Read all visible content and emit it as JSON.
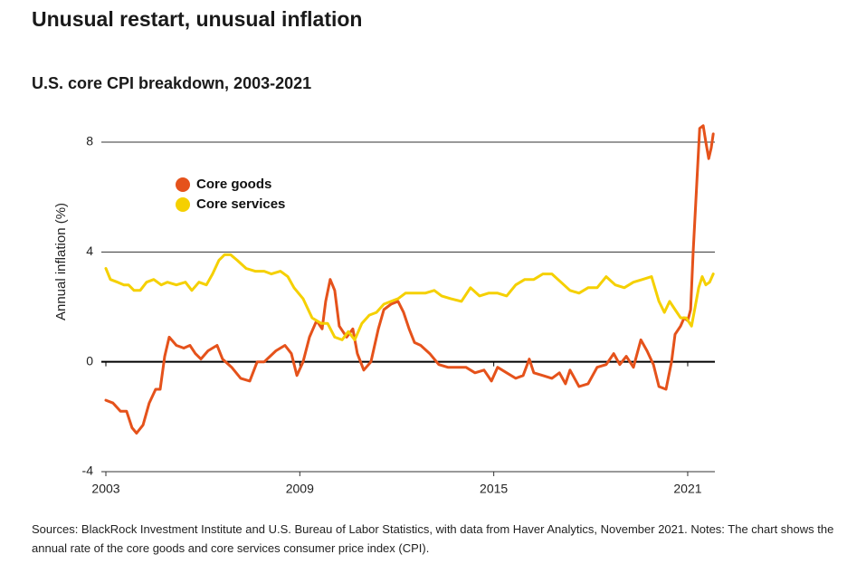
{
  "chart_data": {
    "type": "line",
    "title": "Unusual restart, unusual inflation",
    "subtitle": "U.S. core CPI breakdown, 2003-2021",
    "y_label": "Annual inflation (%)",
    "note": "Sources: BlackRock Investment Institute and U.S. Bureau of Labor Statistics, with data from Haver Analytics, November 2021. Notes: The chart shows the annual rate of the core goods and core services consumer price index (CPI).",
    "xlim": [
      2003,
      2021.85
    ],
    "xticks": [
      2003,
      2009,
      2015,
      2021
    ],
    "ylim": [
      -4,
      8
    ],
    "yticks": [
      -4,
      0,
      4,
      8
    ],
    "grid": true,
    "legend": "upper-left",
    "series": [
      {
        "name": "Core goods",
        "color": "#e5521b",
        "x": [
          2003.0,
          2003.22,
          2003.45,
          2003.64,
          2003.81,
          2003.95,
          2004.15,
          2004.34,
          2004.54,
          2004.68,
          2004.82,
          2004.96,
          2005.18,
          2005.41,
          2005.6,
          2005.77,
          2005.94,
          2006.16,
          2006.44,
          2006.61,
          2006.89,
          2007.17,
          2007.45,
          2007.68,
          2007.9,
          2008.26,
          2008.54,
          2008.74,
          2008.91,
          2009.1,
          2009.3,
          2009.52,
          2009.69,
          2009.8,
          2009.94,
          2010.08,
          2010.22,
          2010.45,
          2010.64,
          2010.78,
          2010.98,
          2011.2,
          2011.43,
          2011.6,
          2011.82,
          2012.04,
          2012.21,
          2012.38,
          2012.55,
          2012.74,
          2013.02,
          2013.3,
          2013.58,
          2013.86,
          2014.14,
          2014.42,
          2014.7,
          2014.93,
          2015.12,
          2015.4,
          2015.68,
          2015.91,
          2016.1,
          2016.24,
          2016.52,
          2016.8,
          2017.03,
          2017.22,
          2017.36,
          2017.64,
          2017.92,
          2018.2,
          2018.48,
          2018.71,
          2018.9,
          2019.1,
          2019.32,
          2019.55,
          2019.74,
          2019.94,
          2020.11,
          2020.33,
          2020.5,
          2020.61,
          2020.78,
          2020.89,
          2021.0,
          2021.09,
          2021.17,
          2021.28,
          2021.37,
          2021.48,
          2021.56,
          2021.65,
          2021.73,
          2021.79
        ],
        "values": [
          -1.4,
          -1.5,
          -1.8,
          -1.8,
          -2.4,
          -2.6,
          -2.3,
          -1.5,
          -1.0,
          -1.0,
          0.2,
          0.9,
          0.6,
          0.5,
          0.6,
          0.3,
          0.1,
          0.4,
          0.6,
          0.1,
          -0.2,
          -0.6,
          -0.7,
          0.0,
          0.0,
          0.4,
          0.6,
          0.3,
          -0.5,
          0.0,
          0.9,
          1.5,
          1.2,
          2.2,
          3.0,
          2.6,
          1.3,
          0.9,
          1.2,
          0.3,
          -0.3,
          0.0,
          1.2,
          1.9,
          2.1,
          2.2,
          1.8,
          1.2,
          0.7,
          0.6,
          0.3,
          -0.1,
          -0.2,
          -0.2,
          -0.2,
          -0.4,
          -0.3,
          -0.7,
          -0.2,
          -0.4,
          -0.6,
          -0.5,
          0.1,
          -0.4,
          -0.5,
          -0.6,
          -0.4,
          -0.8,
          -0.3,
          -0.9,
          -0.8,
          -0.2,
          -0.1,
          0.3,
          -0.1,
          0.2,
          -0.2,
          0.8,
          0.4,
          -0.1,
          -0.9,
          -1.0,
          0.0,
          1.0,
          1.3,
          1.6,
          1.5,
          1.9,
          4.0,
          6.5,
          8.5,
          8.6,
          8.0,
          7.4,
          7.8,
          8.3
        ]
      },
      {
        "name": "Core services",
        "color": "#f5d000",
        "x": [
          2003.0,
          2003.14,
          2003.36,
          2003.56,
          2003.7,
          2003.87,
          2004.06,
          2004.26,
          2004.48,
          2004.71,
          2004.9,
          2005.18,
          2005.46,
          2005.66,
          2005.88,
          2006.11,
          2006.3,
          2006.5,
          2006.67,
          2006.86,
          2007.06,
          2007.34,
          2007.62,
          2007.9,
          2008.12,
          2008.4,
          2008.63,
          2008.82,
          2009.1,
          2009.38,
          2009.66,
          2009.86,
          2010.08,
          2010.31,
          2010.5,
          2010.7,
          2010.92,
          2011.15,
          2011.37,
          2011.6,
          2011.82,
          2012.04,
          2012.27,
          2012.55,
          2012.88,
          2013.16,
          2013.39,
          2013.67,
          2014.0,
          2014.28,
          2014.56,
          2014.84,
          2015.12,
          2015.4,
          2015.68,
          2015.96,
          2016.24,
          2016.52,
          2016.8,
          2017.08,
          2017.36,
          2017.64,
          2017.92,
          2018.2,
          2018.48,
          2018.76,
          2019.04,
          2019.32,
          2019.6,
          2019.88,
          2020.11,
          2020.28,
          2020.44,
          2020.61,
          2020.78,
          2020.95,
          2021.12,
          2021.23,
          2021.34,
          2021.45,
          2021.56,
          2021.68,
          2021.79
        ],
        "values": [
          3.4,
          3.0,
          2.9,
          2.8,
          2.8,
          2.6,
          2.6,
          2.9,
          3.0,
          2.8,
          2.9,
          2.8,
          2.9,
          2.6,
          2.9,
          2.8,
          3.2,
          3.7,
          3.9,
          3.9,
          3.7,
          3.4,
          3.3,
          3.3,
          3.2,
          3.3,
          3.1,
          2.7,
          2.3,
          1.6,
          1.4,
          1.4,
          0.9,
          0.8,
          1.1,
          0.8,
          1.4,
          1.7,
          1.8,
          2.1,
          2.2,
          2.3,
          2.5,
          2.5,
          2.5,
          2.6,
          2.4,
          2.3,
          2.2,
          2.7,
          2.4,
          2.5,
          2.5,
          2.4,
          2.8,
          3.0,
          3.0,
          3.2,
          3.2,
          2.9,
          2.6,
          2.5,
          2.7,
          2.7,
          3.1,
          2.8,
          2.7,
          2.9,
          3.0,
          3.1,
          2.2,
          1.8,
          2.2,
          1.9,
          1.6,
          1.6,
          1.3,
          2.0,
          2.7,
          3.1,
          2.8,
          2.9,
          3.2
        ]
      }
    ]
  }
}
